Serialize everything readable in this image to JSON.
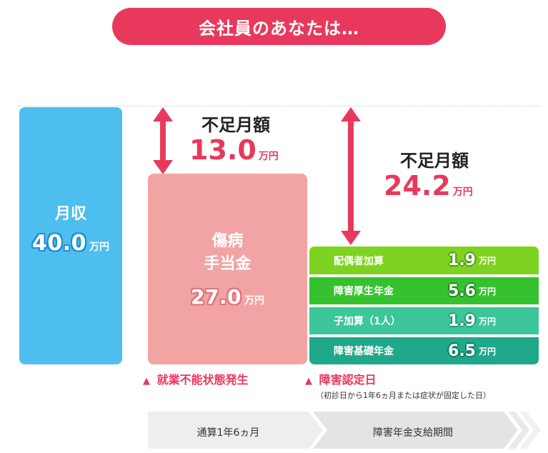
{
  "header": {
    "title": "会社員のあなたは…"
  },
  "income": {
    "label": "月収",
    "value": "40.0",
    "unit": "万円"
  },
  "sickness": {
    "label_line1": "傷病",
    "label_line2": "手当金",
    "value": "27.0",
    "unit": "万円"
  },
  "shortfall_1": {
    "label": "不足月額",
    "value": "13.0",
    "unit": "万円"
  },
  "shortfall_2": {
    "label": "不足月額",
    "value": "24.2",
    "unit": "万円"
  },
  "pension_items": [
    {
      "name": "配偶者加算",
      "value": "1.9",
      "unit": "万円",
      "color": "#7ed321"
    },
    {
      "name": "障害厚生年金",
      "value": "5.6",
      "unit": "万円",
      "color": "#35c22e"
    },
    {
      "name": "子加算（1人）",
      "value": "1.9",
      "unit": "万円",
      "color": "#3cc69a"
    },
    {
      "name": "障害基礎年金",
      "value": "6.5",
      "unit": "万円",
      "color": "#1fa889"
    }
  ],
  "events": {
    "left_marker": "▲",
    "left": "就業不能状態発生",
    "right_marker": "▲",
    "right": "障害認定日",
    "right_note": "（初診日から1年6ヵ月または症状が固定した日）"
  },
  "timeline": {
    "period1": "通算1年6ヵ月",
    "period2": "障害年金支給期間"
  },
  "colors": {
    "accent": "#e8395d",
    "income": "#4ebeef",
    "sickness": "#f2a4a4",
    "timeline": "#eeeeee"
  }
}
